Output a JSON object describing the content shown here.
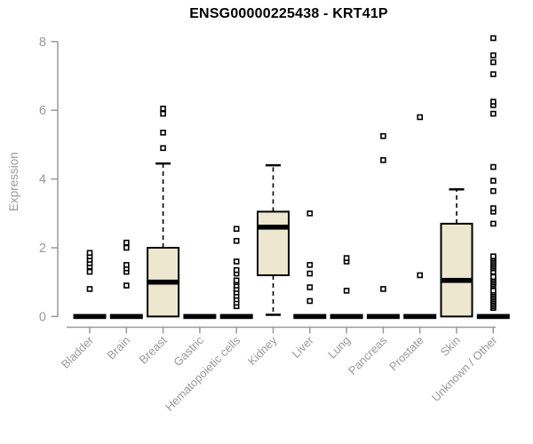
{
  "chart_data": {
    "type": "boxplot",
    "title": "ENSG00000225438 - KRT41P",
    "xlabel": "",
    "ylabel": "Expression",
    "ylim": [
      0,
      8
    ],
    "yticks": [
      0,
      2,
      4,
      6,
      8
    ],
    "grid": false,
    "legend": "none",
    "categories": [
      "Bladder",
      "Brain",
      "Breast",
      "Gastric",
      "Hematopoietic cells",
      "Kidney",
      "Liver",
      "Lung",
      "Pancreas",
      "Prostate",
      "Skin",
      "Unknown / Other"
    ],
    "boxes": [
      {
        "category": "Bladder",
        "q1": 0,
        "median": 0,
        "q3": 0,
        "whisker_low": 0,
        "whisker_high": 0,
        "outliers": [
          0.8,
          1.3,
          1.45,
          1.55,
          1.65,
          1.75,
          1.85
        ]
      },
      {
        "category": "Brain",
        "q1": 0,
        "median": 0,
        "q3": 0,
        "whisker_low": 0,
        "whisker_high": 0,
        "outliers": [
          0.9,
          1.3,
          1.4,
          1.5,
          2.0,
          2.15
        ]
      },
      {
        "category": "Breast",
        "q1": 0,
        "median": 1.0,
        "q3": 2.0,
        "whisker_low": 0,
        "whisker_high": 4.45,
        "outliers": [
          4.9,
          5.35,
          5.9,
          6.05
        ]
      },
      {
        "category": "Gastric",
        "q1": 0,
        "median": 0,
        "q3": 0,
        "whisker_low": 0,
        "whisker_high": 0,
        "outliers": []
      },
      {
        "category": "Hematopoietic cells",
        "q1": 0,
        "median": 0,
        "q3": 0,
        "whisker_low": 0,
        "whisker_high": 0,
        "outliers": [
          0.3,
          0.4,
          0.5,
          0.6,
          0.7,
          0.8,
          0.9,
          1.0,
          1.05,
          1.25,
          1.35,
          1.6,
          2.2,
          2.55
        ]
      },
      {
        "category": "Kidney",
        "q1": 1.2,
        "median": 2.6,
        "q3": 3.05,
        "whisker_low": 0.05,
        "whisker_high": 4.4,
        "outliers": []
      },
      {
        "category": "Liver",
        "q1": 0,
        "median": 0,
        "q3": 0,
        "whisker_low": 0,
        "whisker_high": 0,
        "outliers": [
          0.45,
          0.85,
          1.25,
          1.5,
          3.0
        ]
      },
      {
        "category": "Lung",
        "q1": 0,
        "median": 0,
        "q3": 0,
        "whisker_low": 0,
        "whisker_high": 0,
        "outliers": [
          0.75,
          1.6,
          1.7
        ]
      },
      {
        "category": "Pancreas",
        "q1": 0,
        "median": 0,
        "q3": 0,
        "whisker_low": 0,
        "whisker_high": 0,
        "outliers": [
          0.8,
          4.55,
          5.25
        ]
      },
      {
        "category": "Prostate",
        "q1": 0,
        "median": 0,
        "q3": 0,
        "whisker_low": 0,
        "whisker_high": 0,
        "outliers": [
          1.2,
          5.8
        ]
      },
      {
        "category": "Skin",
        "q1": 0,
        "median": 1.05,
        "q3": 2.7,
        "whisker_low": 0,
        "whisker_high": 3.7,
        "outliers": []
      },
      {
        "category": "Unknown / Other",
        "q1": 0,
        "median": 0,
        "q3": 0,
        "whisker_low": 0,
        "whisker_high": 0,
        "outliers": [
          0.25,
          0.3,
          0.35,
          0.4,
          0.45,
          0.5,
          0.55,
          0.6,
          0.65,
          0.7,
          0.75,
          0.9,
          0.95,
          1.0,
          1.05,
          1.1,
          1.15,
          1.3,
          1.4,
          1.45,
          1.5,
          1.55,
          1.6,
          1.65,
          1.7,
          1.75,
          2.7,
          3.05,
          3.15,
          3.65,
          3.95,
          4.35,
          5.9,
          6.15,
          6.25,
          7.05,
          7.4,
          7.6,
          8.1
        ]
      }
    ],
    "colors": {
      "box_fill": "#ede7cf",
      "box_stroke": "#000000",
      "median": "#000000",
      "whisker": "#000000",
      "outlier_stroke": "#000000",
      "outlier_fill": "#ffffff",
      "axis": "#999999",
      "tick_label": "#999999",
      "title": "#000000",
      "background": "#ffffff"
    }
  }
}
